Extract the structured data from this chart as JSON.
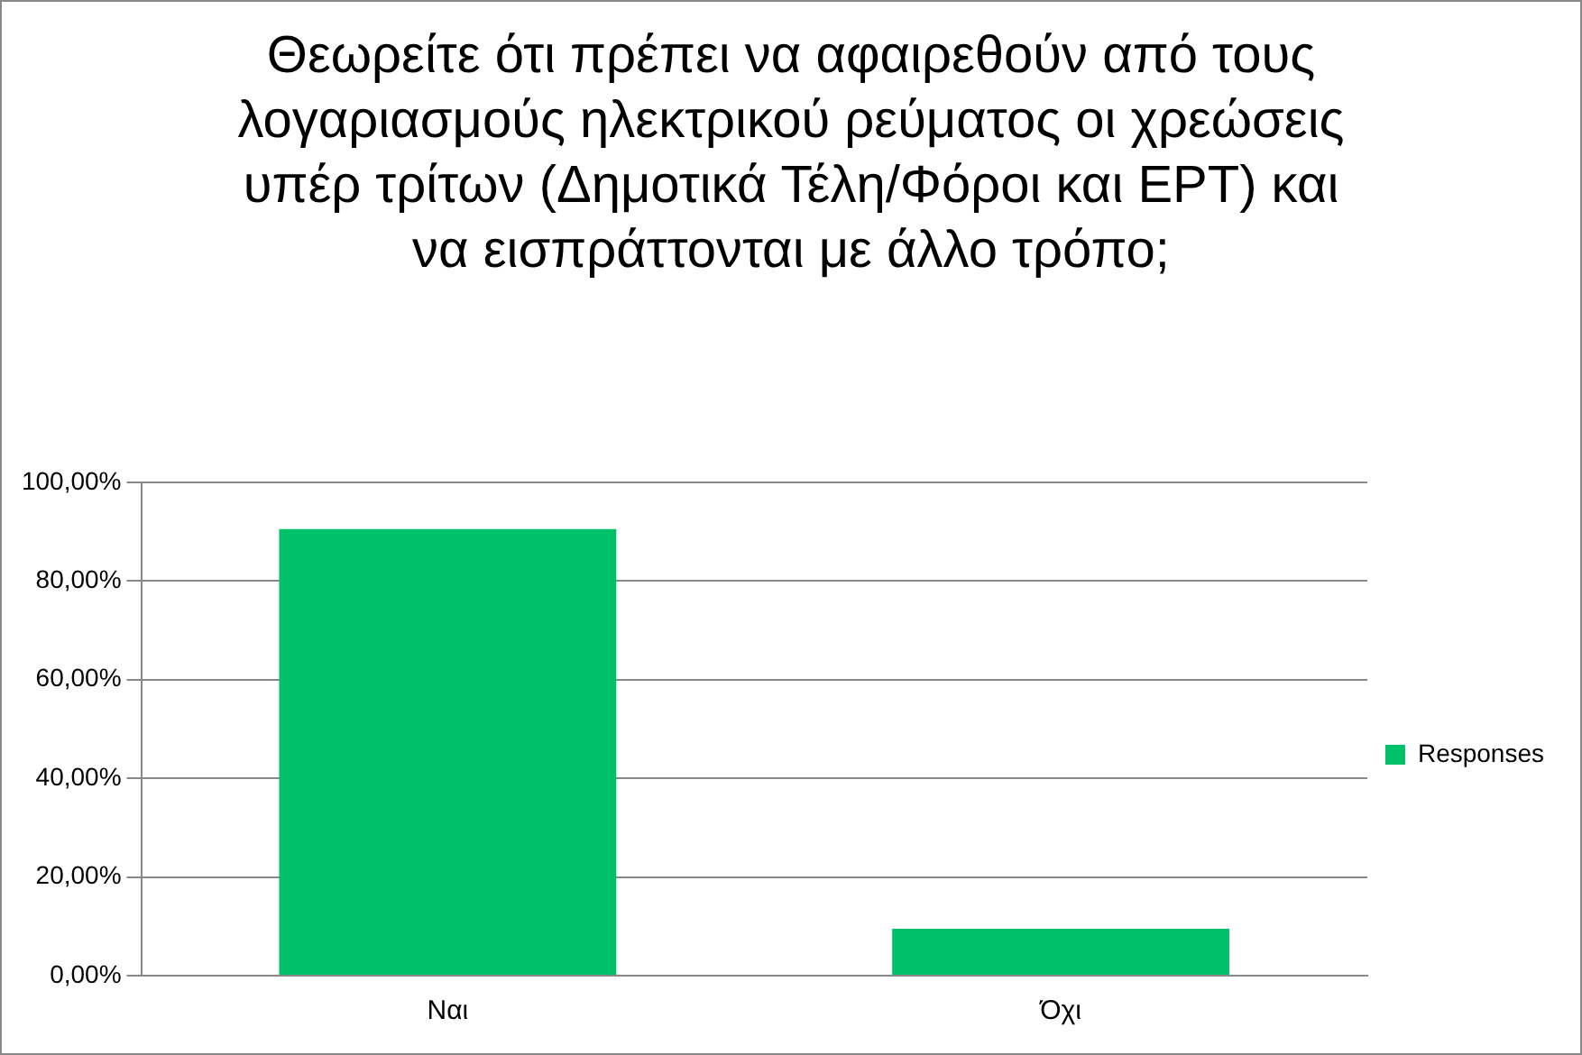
{
  "chart_data": {
    "type": "bar",
    "title": "Θεωρείτε ότι πρέπει να αφαιρεθούν από τους λογαριασμούς ηλεκτρικού ρεύματος οι χρεώσεις υπέρ τρίτων (Δημοτικά Τέλη/Φόροι και ΕΡΤ) και να εισπράττονται με άλλο τρόπο;",
    "categories": [
      "Ναι",
      "Όχι"
    ],
    "series": [
      {
        "name": "Responses",
        "color": "#00c06a",
        "values": [
          90.5,
          9.5
        ]
      }
    ],
    "ylim": [
      0,
      100
    ],
    "yticks": [
      {
        "value": 0,
        "label": "0,00%"
      },
      {
        "value": 20,
        "label": "20,00%"
      },
      {
        "value": 40,
        "label": "40,00%"
      },
      {
        "value": 60,
        "label": "60,00%"
      },
      {
        "value": 80,
        "label": "80,00%"
      },
      {
        "value": 100,
        "label": "100,00%"
      }
    ],
    "grid": "y",
    "legend": "right"
  }
}
